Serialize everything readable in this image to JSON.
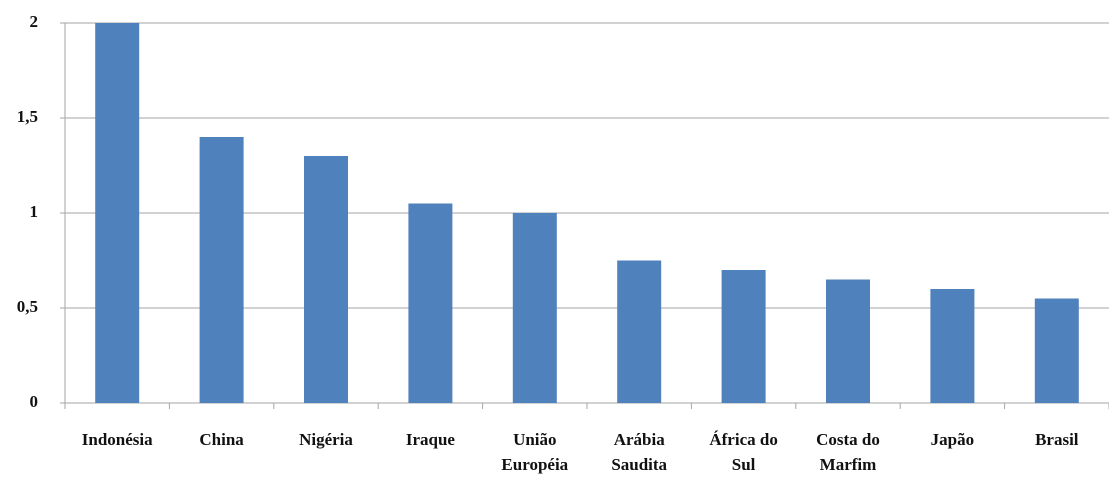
{
  "chart_data": {
    "type": "bar",
    "categories": [
      "Indonésia",
      "China",
      "Nigéria",
      "Iraque",
      "União\nEuropéia",
      "Arábia\nSaudita",
      "África do\nSul",
      "Costa do\nMarfim",
      "Japão",
      "Brasil"
    ],
    "values": [
      2,
      1.4,
      1.3,
      1.05,
      1,
      0.75,
      0.7,
      0.65,
      0.6,
      0.55
    ],
    "color": "#4f81bd",
    "ylim": [
      0,
      2
    ],
    "yticks": [
      0,
      {
        "value": 0.5,
        "label": "0,5"
      },
      1,
      {
        "value": 1.5,
        "label": "1,5"
      },
      2
    ],
    "grid": true
  }
}
